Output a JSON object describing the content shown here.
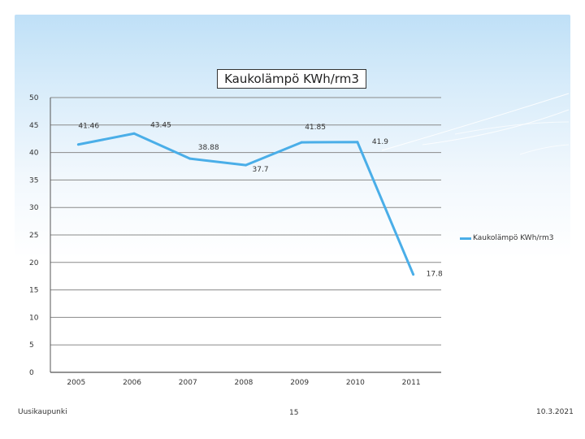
{
  "chart_data": {
    "type": "line",
    "title": "Kaukolämpö KWh/rm3",
    "categories": [
      "2005",
      "2006",
      "2007",
      "2008",
      "2009",
      "2010",
      "2011"
    ],
    "series": [
      {
        "name": "Kaukolämpö KWh/rm3",
        "values": [
          41.46,
          43.45,
          38.88,
          37.7,
          41.85,
          41.9,
          17.8
        ],
        "labels": [
          "41.46",
          "43.45",
          "38.88",
          "37.7",
          "41.85",
          "41.9",
          "17.8"
        ],
        "color": "#4aaee8"
      }
    ],
    "yticks": [
      "0",
      "5",
      "10",
      "15",
      "20",
      "25",
      "30",
      "35",
      "40",
      "45",
      "50"
    ],
    "ylim": [
      0,
      50
    ],
    "grid": true,
    "legend": "right"
  },
  "footer": {
    "left": "Uusikaupunki",
    "center": "15",
    "right": "10.3.2021"
  },
  "colors": {
    "series": "#4aaee8",
    "grid": "#888888",
    "background_top": "#bfe0f7"
  }
}
